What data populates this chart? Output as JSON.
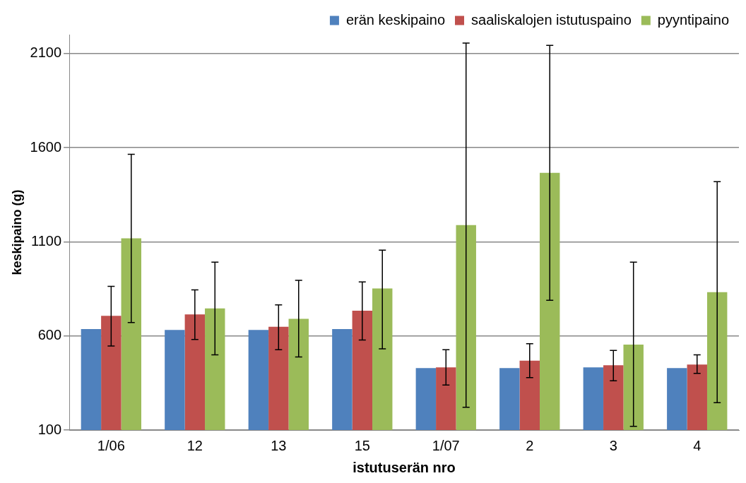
{
  "chart_data": {
    "type": "bar",
    "xlabel": "istutuserän nro",
    "ylabel": "keskipaino (g)",
    "categories": [
      "1/06",
      "12",
      "13",
      "15",
      "1/07",
      "2",
      "3",
      "4"
    ],
    "series": [
      {
        "name": "erän keskipaino",
        "color": "#4f81bd",
        "values": [
          636,
          632,
          632,
          636,
          429,
          429,
          433,
          429
        ]
      },
      {
        "name": "saaliskalojen istutuspaino",
        "color": "#c0504d",
        "values": [
          707,
          714,
          648,
          734,
          433,
          468,
          444,
          448
        ],
        "errors": [
          [
            546,
            863
          ],
          [
            581,
            844
          ],
          [
            527,
            765
          ],
          [
            578,
            887
          ],
          [
            339,
            527
          ],
          [
            378,
            558
          ],
          [
            362,
            523
          ],
          [
            401,
            499
          ]
        ]
      },
      {
        "name": "pyyntipaino",
        "color": "#9bbb59",
        "values": [
          1118,
          746,
          691,
          852,
          1188,
          1466,
          554,
          832
        ],
        "errors": [
          [
            671,
            1564
          ],
          [
            499,
            992
          ],
          [
            488,
            895
          ],
          [
            531,
            1055
          ],
          [
            221,
            2155
          ],
          [
            789,
            2143
          ],
          [
            120,
            992
          ],
          [
            245,
            1419
          ]
        ]
      }
    ],
    "ylim": [
      100,
      2200
    ],
    "yticks": [
      100,
      600,
      1100,
      1600,
      2100
    ],
    "grid": "y",
    "legend": "top right"
  }
}
